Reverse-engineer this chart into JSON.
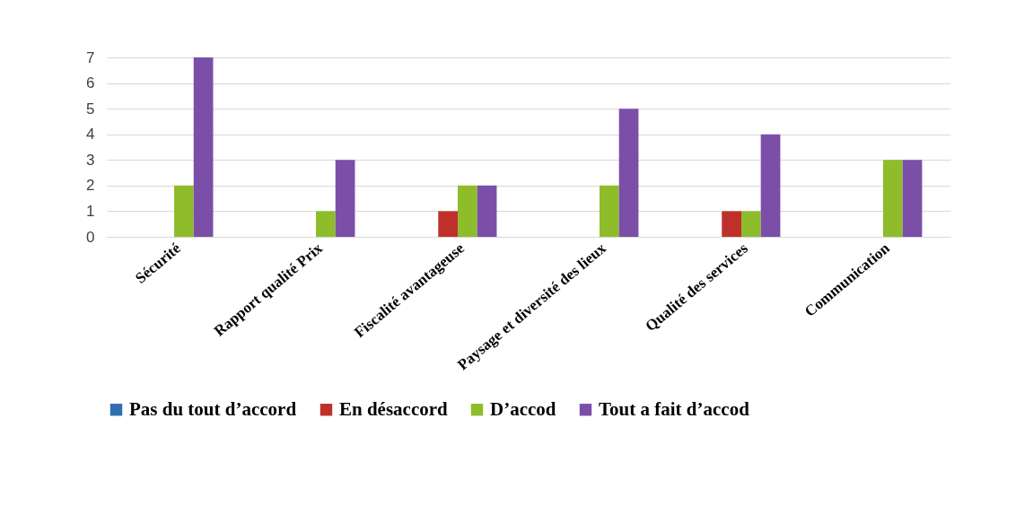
{
  "chart_data": {
    "type": "bar",
    "categories": [
      "Sécurité",
      "Rapport qualité Prix",
      "Fiscalité avantageuse",
      "Paysage et diversité des lieux",
      "Qualité des services",
      "Communication"
    ],
    "series": [
      {
        "name": "Pas du tout d’accord",
        "color": "#2e6fb0",
        "values": [
          0,
          0,
          0,
          0,
          0,
          0
        ]
      },
      {
        "name": "En désaccord",
        "color": "#c0302b",
        "values": [
          0,
          0,
          1,
          0,
          1,
          0
        ]
      },
      {
        "name": "D’accod",
        "color": "#8fbc2b",
        "values": [
          2,
          1,
          2,
          2,
          1,
          3
        ]
      },
      {
        "name": "Tout a fait d’accod",
        "color": "#7b4fa8",
        "values": [
          7,
          3,
          2,
          5,
          4,
          3
        ]
      }
    ],
    "ylim": [
      0,
      7
    ],
    "yticks": [
      0,
      1,
      2,
      3,
      4,
      5,
      6,
      7
    ],
    "grid": "y",
    "legend": "bottom"
  }
}
